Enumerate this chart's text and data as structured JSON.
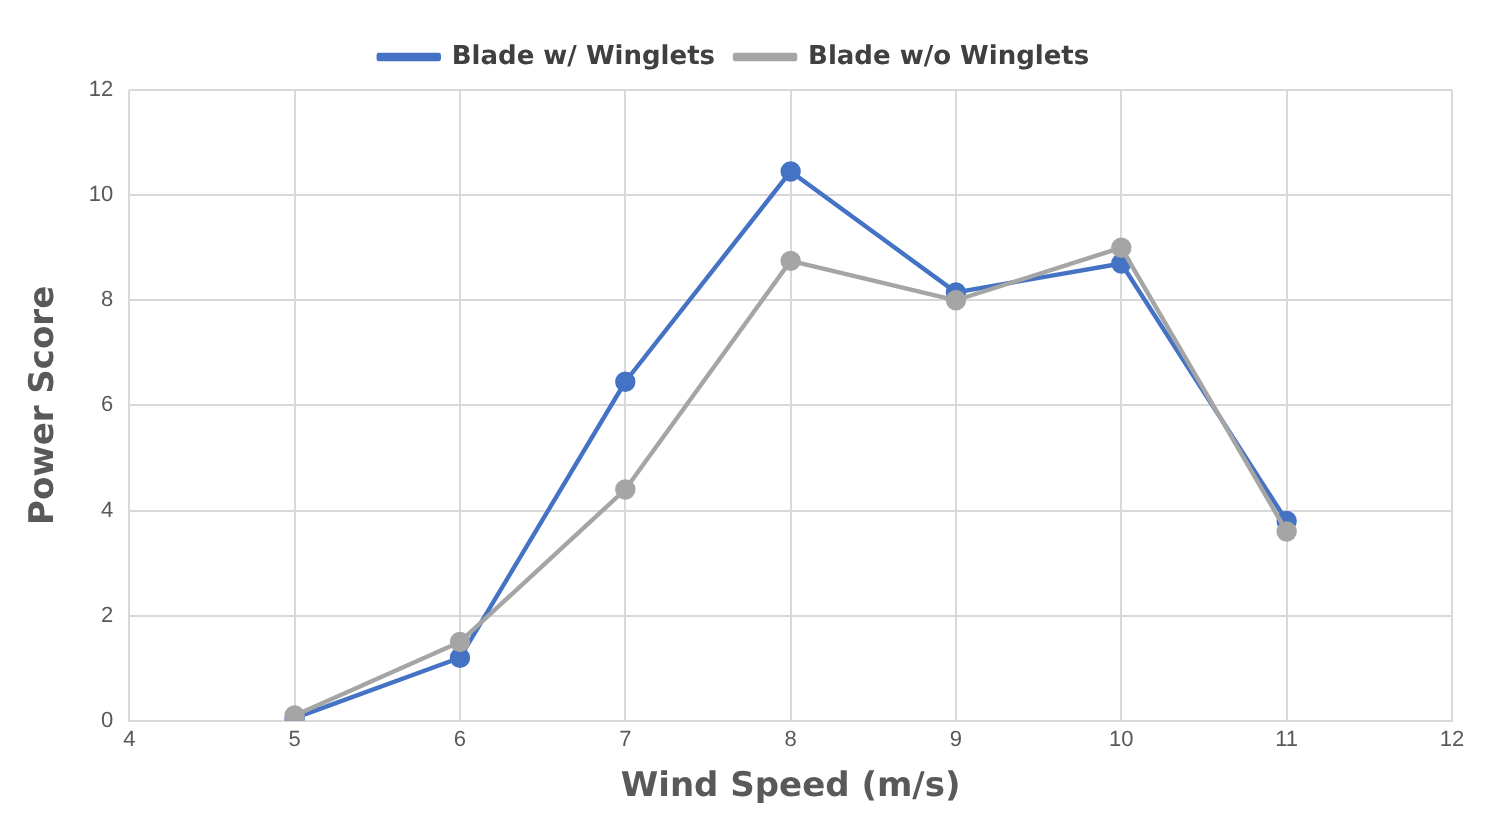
{
  "chart_data": {
    "type": "line",
    "xlabel": "Wind Speed (m/s)",
    "ylabel": "Power Score",
    "x": [
      5,
      6,
      7,
      8,
      9,
      10,
      11
    ],
    "series": [
      {
        "name": "Blade w/ Winglets",
        "color": "#4472c4",
        "values": [
          0.05,
          1.2,
          6.45,
          10.45,
          8.15,
          8.7,
          3.8
        ]
      },
      {
        "name": "Blade w/o Winglets",
        "color": "#a5a5a5",
        "values": [
          0.1,
          1.5,
          4.4,
          8.75,
          8.0,
          9.0,
          3.6
        ]
      }
    ],
    "xlim": [
      4,
      12
    ],
    "xticks": [
      4,
      5,
      6,
      7,
      8,
      9,
      10,
      11,
      12
    ],
    "ylim": [
      0,
      12
    ],
    "yticks": [
      0,
      2,
      4,
      6,
      8,
      10,
      12
    ],
    "grid": true,
    "legend": "top",
    "marker": "circle",
    "line_style": "solid"
  }
}
